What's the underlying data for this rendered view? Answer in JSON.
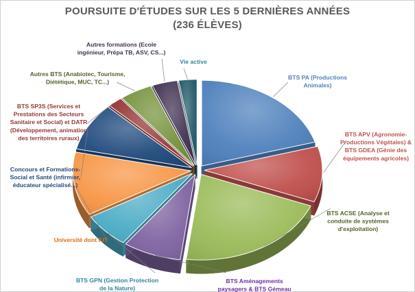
{
  "chart_data": {
    "type": "pie",
    "style": "3d-exploded",
    "title": "POURSUITE D'ÉTUDES SUR LES 5 DERNIÈRES ANNÉES",
    "subtitle": "(236 ÉLÈVES)",
    "legend": "none",
    "slices": [
      {
        "lines": [
          "BTS PA (Productions",
          "Animales)"
        ],
        "value": 20.5,
        "color": "#4f81bd",
        "label_color": "#4f81bd"
      },
      {
        "lines": [
          "BTS  APV  (Agronomie-",
          "Productions Végétales)  &",
          "BTS GDEA (Génie des",
          "équipements agricoles)"
        ],
        "value": 10.5,
        "color": "#c0504d",
        "label_color": "#c0504d"
      },
      {
        "lines": [
          "BTS ACSE (Analyse et",
          "conduite de systèmes",
          "d'exploitation)"
        ],
        "value": 21.0,
        "color": "#9bbb59",
        "label_color": "#4f6228"
      },
      {
        "lines": [
          "BTS Aménagements",
          "paysagers & BTS Gémeau"
        ],
        "value": 8.0,
        "color": "#8064a2",
        "label_color": "#7030a0"
      },
      {
        "lines": [
          "BTS GPN (Gestion Protection",
          "de la Nature)"
        ],
        "value": 6.5,
        "color": "#4bacc6",
        "label_color": "#31849b"
      },
      {
        "lines": [
          "Université  dont IUT"
        ],
        "value": 12.0,
        "color": "#f79646",
        "label_color": "#e46c0a"
      },
      {
        "lines": [
          "Concours et Formations-",
          "Social et Santé (infirmier,",
          "éducateur spécialisé...)"
        ],
        "value": 9.0,
        "color": "#1f497d",
        "label_color": "#1f497d"
      },
      {
        "lines": [
          "BTS SP3S (Services et",
          "Prestations des Secteurs",
          "Sanitaire et Social) et DATR",
          "(Développement, animation",
          "des territoires ruraux)"
        ],
        "value": 2.0,
        "color": "#953735",
        "label_color": "#953735"
      },
      {
        "lines": [
          "Autres BTS  (Anabiotec, Tourisme,",
          "Diététique, MUC, TC...)"
        ],
        "value": 4.5,
        "color": "#76923c",
        "label_color": "#4f6228"
      },
      {
        "lines": [
          "Autres formations (Ecole",
          "ingénieur, Prépa TB, ASV, CS...)"
        ],
        "value": 3.5,
        "color": "#403151",
        "label_color": "#403151"
      },
      {
        "lines": [
          "Vie active"
        ],
        "value": 2.5,
        "color": "#215968",
        "label_color": "#31849b"
      }
    ]
  }
}
